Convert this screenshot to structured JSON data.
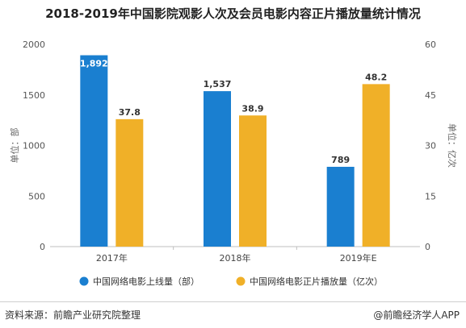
{
  "chart_data": {
    "type": "bar",
    "title": "2018-2019年中国影院观影人次及会员电影内容正片播放量统计情况",
    "categories": [
      "2017年",
      "2018年",
      "2019年E"
    ],
    "series": [
      {
        "name": "中国网络电影上线量（部）",
        "axis": "left",
        "color": "#1a7fd0",
        "values": [
          1892,
          1537,
          789
        ],
        "labels": [
          "1,892",
          "1,537",
          "789"
        ]
      },
      {
        "name": "中国网络电影正片播放量（亿次）",
        "axis": "right",
        "color": "#f0b028",
        "values": [
          37.8,
          38.9,
          48.2
        ],
        "labels": [
          "37.8",
          "38.9",
          "48.2"
        ]
      }
    ],
    "ylabel": "单位：部",
    "y2label": "单位：亿次",
    "ylim": [
      0,
      2000
    ],
    "y2lim": [
      0,
      60
    ],
    "yticks": [
      "0",
      "500",
      "1000",
      "1500",
      "2000"
    ],
    "y2ticks": [
      "0",
      "15",
      "30",
      "45",
      "60"
    ],
    "grid": false,
    "legend": "bottom"
  },
  "footer": {
    "source": "资料来源：前瞻产业研究院整理",
    "brand": "@前瞻经济学人APP"
  }
}
